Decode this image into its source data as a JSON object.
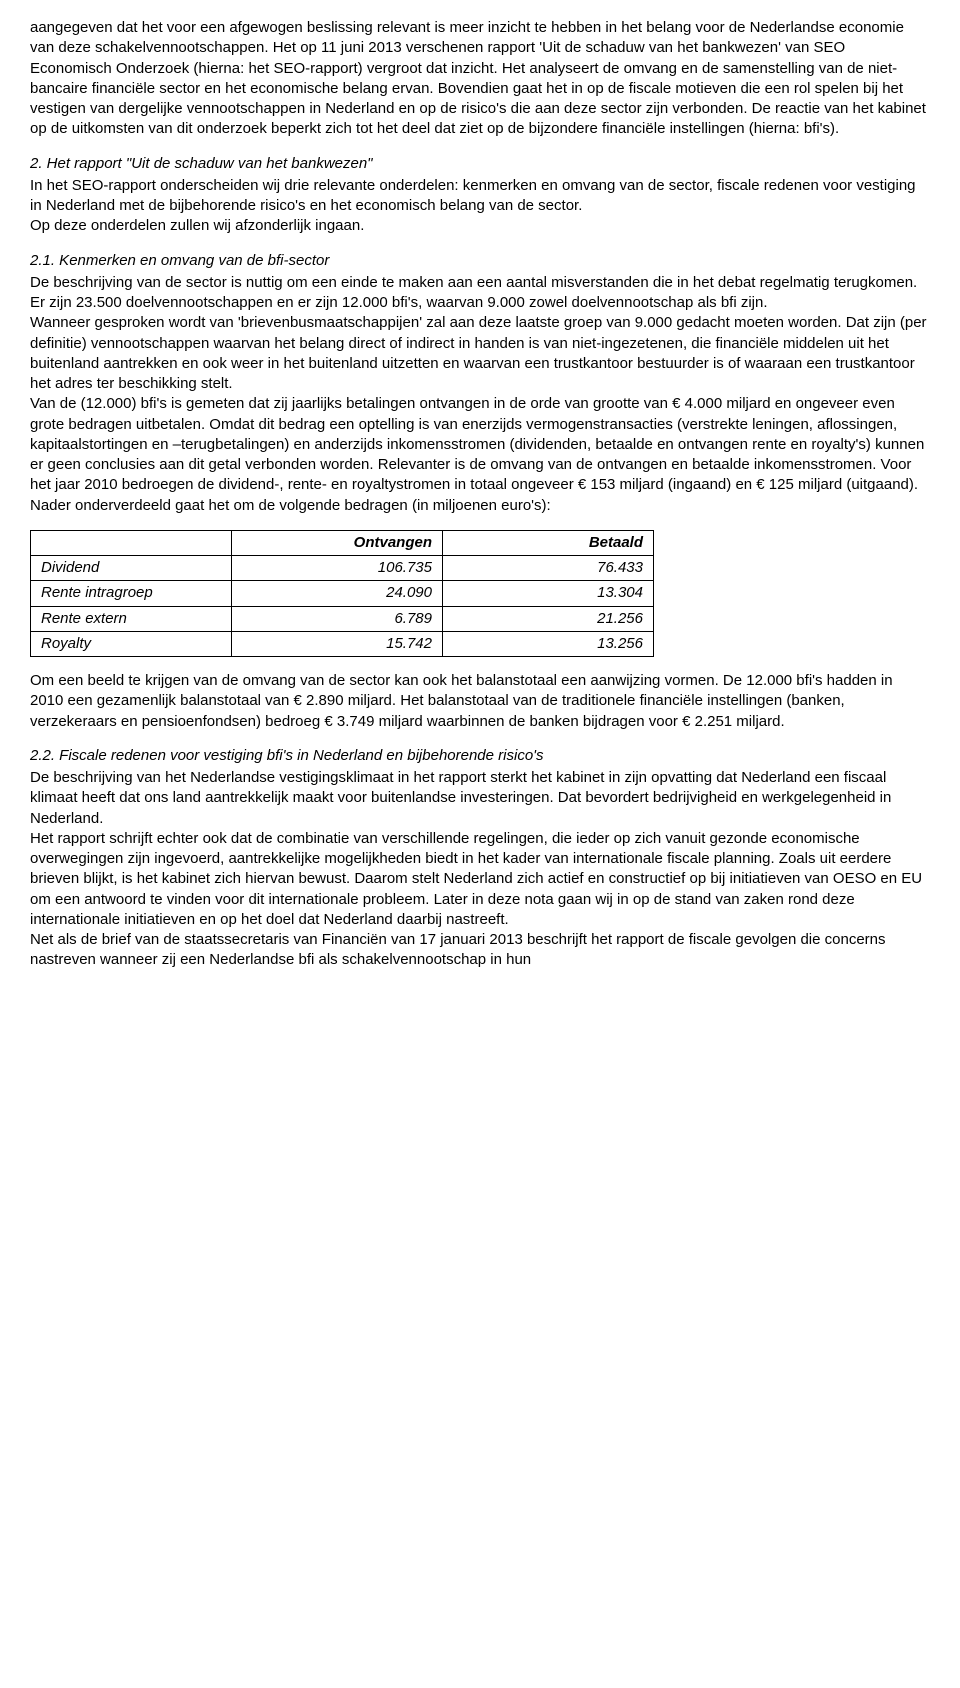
{
  "para1": "aangegeven dat het voor een afgewogen beslissing relevant is meer inzicht te hebben in het belang voor de Nederlandse economie van deze schakelvennootschappen.",
  "para2": "Het op 11 juni 2013 verschenen rapport 'Uit de schaduw van het bankwezen' van SEO Economisch Onderzoek (hierna: het SEO-rapport) vergroot dat inzicht. Het analyseert de omvang en de samenstelling van de niet-bancaire financiële sector en het economische belang ervan. Bovendien gaat het in op de fiscale motieven die een rol spelen bij het vestigen van dergelijke vennootschappen in Nederland en op de risico's die aan deze sector zijn verbonden.",
  "para3": "De reactie van het kabinet op de uitkomsten van dit onderzoek beperkt zich tot het deel dat ziet op de bijzondere financiële instellingen (hierna: bfi's).",
  "sec2_title": "2. Het rapport \"Uit de schaduw van het bankwezen\"",
  "sec2_p1": "In het SEO-rapport onderscheiden wij drie relevante onderdelen: kenmerken en omvang van de sector, fiscale redenen voor vestiging in Nederland met de bijbehorende risico's en het economisch belang van de sector.",
  "sec2_p2": "Op deze onderdelen zullen wij afzonderlijk ingaan.",
  "sec21_title": "2.1. Kenmerken en omvang van de bfi-sector",
  "sec21_p1": "De beschrijving van de sector is nuttig om een einde te maken aan een aantal misverstanden die in het debat regelmatig terugkomen. Er zijn 23.500 doelvennootschappen en er zijn 12.000 bfi's, waarvan 9.000 zowel doelvennootschap als bfi zijn.",
  "sec21_p2": "Wanneer gesproken wordt van 'brievenbusmaatschappijen' zal aan deze laatste groep van 9.000 gedacht moeten worden. Dat zijn (per definitie) vennootschappen waarvan het belang direct of indirect in handen is van niet-ingezetenen, die financiële middelen uit het buitenland aantrekken en ook weer in het buitenland uitzetten en waarvan een trustkantoor bestuurder is of waaraan een trustkantoor het adres ter beschikking stelt.",
  "sec21_p3": "Van de (12.000) bfi's is gemeten dat zij jaarlijks betalingen ontvangen in de orde van grootte van € 4.000 miljard en ongeveer even grote bedragen uitbetalen. Omdat dit bedrag een optelling is van enerzijds vermogenstransacties (verstrekte leningen, aflossingen, kapitaalstortingen en –terugbetalingen) en anderzijds inkomensstromen (dividenden, betaalde en ontvangen rente en royalty's) kunnen er geen conclusies aan dit getal verbonden worden. Relevanter is de omvang van de ontvangen en betaalde inkomensstromen. Voor het jaar 2010 bedroegen de dividend-, rente- en royaltystromen in totaal ongeveer € 153 miljard (ingaand) en € 125 miljard (uitgaand). Nader onderverdeeld gaat het om de volgende bedragen (in miljoenen euro's):",
  "table": {
    "headers": [
      "",
      "Ontvangen",
      "Betaald"
    ],
    "rows": [
      [
        "Dividend",
        "106.735",
        "76.433"
      ],
      [
        "Rente intragroep",
        "24.090",
        "13.304"
      ],
      [
        "Rente extern",
        "6.789",
        "21.256"
      ],
      [
        "Royalty",
        "15.742",
        "13.256"
      ]
    ]
  },
  "sec21_p4": "Om een beeld te krijgen van de omvang van de sector kan ook het balanstotaal een aanwijzing vormen. De 12.000 bfi's hadden in 2010 een gezamenlijk balanstotaal van € 2.890 miljard. Het balanstotaal van de traditionele financiële instellingen (banken, verzekeraars en pensioenfondsen) bedroeg € 3.749 miljard waarbinnen de banken bijdragen voor € 2.251 miljard.",
  "sec22_title": "2.2. Fiscale redenen voor vestiging bfi's in Nederland en bijbehorende risico's",
  "sec22_p1": "De beschrijving van het Nederlandse vestigingsklimaat in het rapport sterkt het kabinet in zijn opvatting dat Nederland een fiscaal klimaat heeft dat ons land aantrekkelijk maakt voor buitenlandse investeringen. Dat bevordert bedrijvigheid en werkgelegenheid in Nederland.",
  "sec22_p2": "Het rapport schrijft echter ook dat de combinatie van verschillende regelingen, die ieder op zich vanuit gezonde economische overwegingen zijn ingevoerd, aantrekkelijke mogelijkheden biedt in het kader van internationale fiscale planning. Zoals uit eerdere brieven blijkt, is het kabinet zich hiervan bewust. Daarom stelt Nederland zich actief en constructief op bij initiatieven van OESO en EU om een antwoord te vinden voor dit internationale probleem. Later in deze nota gaan wij in op de stand van zaken rond deze internationale initiatieven en op het doel dat Nederland daarbij nastreeft.",
  "sec22_p3": "Net als de brief van de staatssecretaris van Financiën van 17 januari 2013 beschrijft het rapport de fiscale gevolgen die concerns nastreven wanneer zij een Nederlandse bfi als schakelvennootschap in hun"
}
